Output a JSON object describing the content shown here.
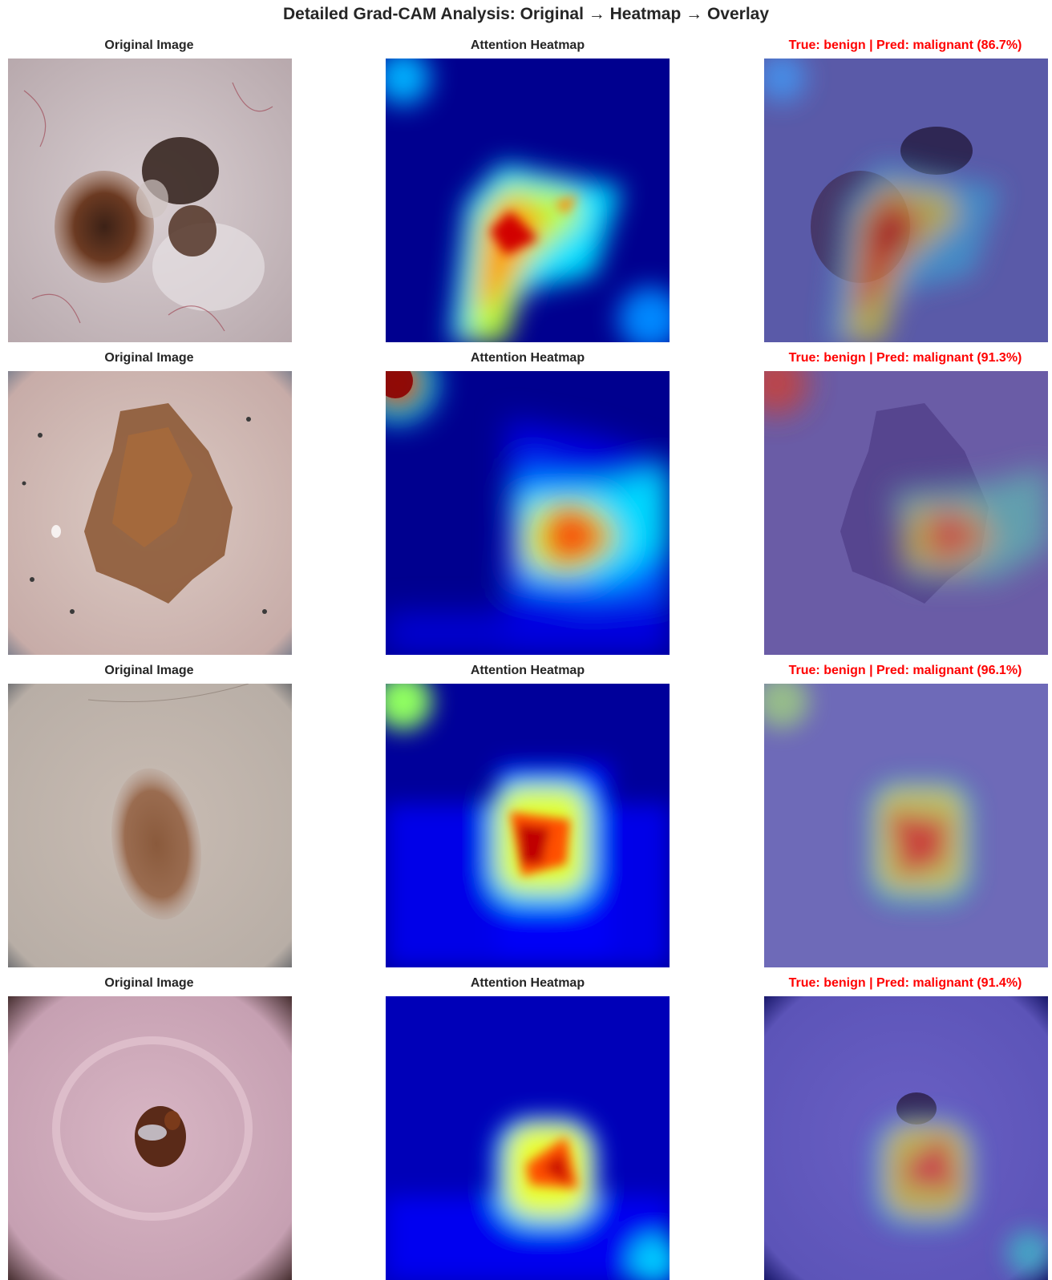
{
  "title": "Detailed Grad-CAM Analysis: Original → Heatmap → Overlay",
  "rows": [
    {
      "original_title": "Original Image",
      "heatmap_title": "Attention Heatmap",
      "overlay_title": "True: benign | Pred: malignant (86.7%)",
      "true_label": "benign",
      "pred_label": "malignant",
      "confidence": 86.7
    },
    {
      "original_title": "Original Image",
      "heatmap_title": "Attention Heatmap",
      "overlay_title": "True: benign | Pred: malignant (91.3%)",
      "true_label": "benign",
      "pred_label": "malignant",
      "confidence": 91.3
    },
    {
      "original_title": "Original Image",
      "heatmap_title": "Attention Heatmap",
      "overlay_title": "True: benign | Pred: malignant (96.1%)",
      "true_label": "benign",
      "pred_label": "malignant",
      "confidence": 96.1
    },
    {
      "original_title": "Original Image",
      "heatmap_title": "Attention Heatmap",
      "overlay_title": "True: benign | Pred: malignant (91.4%)",
      "true_label": "benign",
      "pred_label": "malignant",
      "confidence": 91.4
    }
  ],
  "colors": {
    "prediction_text": "#ff0000",
    "title_text": "#262626",
    "colormap": "jet"
  }
}
